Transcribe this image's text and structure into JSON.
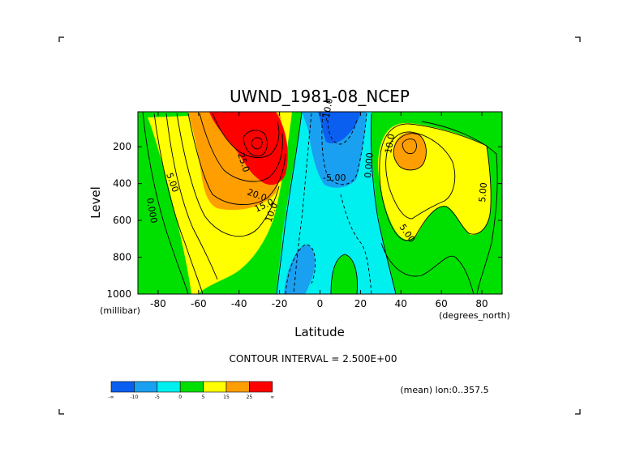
{
  "chart_data": {
    "type": "contour",
    "title": "UWND_1981-08_NCEP",
    "xlabel": "Latitude",
    "ylabel": "Level",
    "x_unit_label": "(degrees_north)",
    "y_unit_label": "(millibar)",
    "xlim": [
      -90,
      90
    ],
    "ylim": [
      1000,
      10
    ],
    "x_ticks": [
      "-80",
      "-60",
      "-40",
      "-20",
      "0",
      "20",
      "40",
      "60",
      "80"
    ],
    "y_ticks": [
      "200",
      "400",
      "600",
      "800",
      "1000"
    ],
    "contour_interval_text": "CONTOUR INTERVAL = 2.500E+00",
    "mean_text": "(mean) lon:0..357.5",
    "colorbar": {
      "labels": [
        "-∞",
        "-10",
        "-5",
        "0",
        "5",
        "15",
        "25",
        "∞"
      ],
      "colors": [
        "#0a5ff0",
        "#1aa0f0",
        "#00f0f0",
        "#00e000",
        "#ffff00",
        "#ff9e00",
        "#ff0000"
      ]
    },
    "contour_labels": [
      "5.00",
      "0.000",
      "25.0",
      "20.0",
      "15.0",
      "10.0",
      "-5.00",
      "-10.0",
      "10.0",
      "0.000",
      "5.00",
      "5.00"
    ],
    "features": [
      {
        "name": "southern-jet",
        "lat": -30,
        "level": 200,
        "max": 30
      },
      {
        "name": "northern-jet",
        "lat": 42,
        "level": 200,
        "max": 12.5
      },
      {
        "name": "tropical-easterlies",
        "lat": 5,
        "level": 200,
        "min": -10
      }
    ]
  }
}
